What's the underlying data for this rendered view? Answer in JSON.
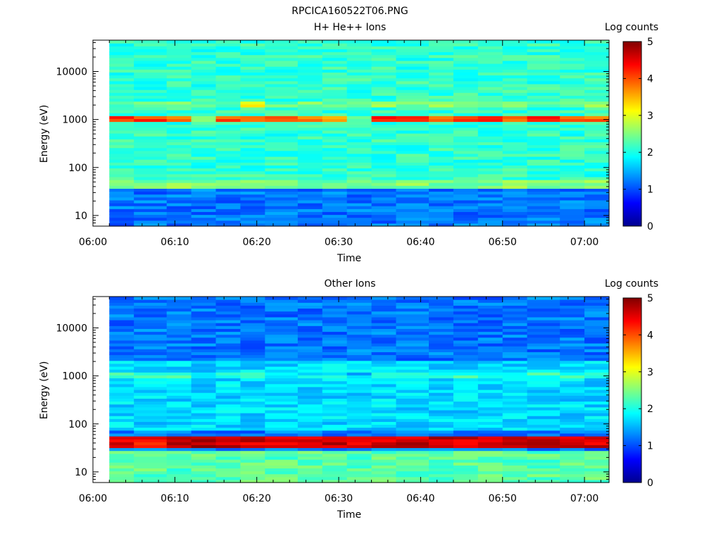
{
  "title": "RPCICA160522T06.PNG",
  "colormap": [
    "#00008f",
    "#0000ff",
    "#0080ff",
    "#00ffff",
    "#80ff80",
    "#ffff00",
    "#ff8000",
    "#ff0000",
    "#800000"
  ],
  "chart_data": [
    {
      "type": "heatmap",
      "title": "H+ He++ Ions",
      "xlabel": "Time",
      "ylabel": "Energy (eV)",
      "ylog": true,
      "xlim": [
        "06:00",
        "07:03"
      ],
      "ylim": [
        6,
        45000
      ],
      "data_start": "06:02",
      "xticks": [
        "06:00",
        "06:10",
        "06:20",
        "06:30",
        "06:40",
        "06:50",
        "07:00"
      ],
      "yticks": [
        {
          "value": 10,
          "label": "10"
        },
        {
          "value": 100,
          "label": "100"
        },
        {
          "value": 1000,
          "label": "1000"
        },
        {
          "value": 10000,
          "label": "10000"
        }
      ],
      "colorbar": {
        "label": "Log counts",
        "min": 0,
        "max": 5,
        "ticks": [
          "0",
          "1",
          "2",
          "3",
          "4",
          "5"
        ]
      },
      "time_bins": [
        "06:02",
        "06:05",
        "06:09",
        "06:12",
        "06:15",
        "06:18",
        "06:21",
        "06:25",
        "06:28",
        "06:31",
        "06:34",
        "06:37",
        "06:41",
        "06:44",
        "06:47",
        "06:50",
        "06:53",
        "06:57",
        "07:00"
      ],
      "features": [
        {
          "name": "base",
          "energy_range": [
            6,
            45000
          ],
          "log_counts": 2.1
        },
        {
          "name": "low energy",
          "energy_range": [
            6,
            35
          ],
          "log_counts": 1.2
        },
        {
          "name": "band 40-55 eV",
          "energy_range": [
            38,
            56
          ],
          "log_counts": 2.5
        },
        {
          "name": "band 900-1100 eV",
          "energy_range": [
            880,
            1150
          ],
          "log_counts": [
            4.1,
            4.1,
            3.9,
            2.3,
            4.0,
            4.0,
            3.9,
            3.6,
            3.6,
            2.5,
            4.1,
            4.2,
            4.0,
            4.1,
            4.1,
            4.0,
            4.1,
            4.0,
            3.9
          ]
        },
        {
          "name": "band 2000 eV",
          "energy_range": [
            1850,
            2300
          ],
          "log_counts": [
            2.3,
            2.5,
            2.4,
            2.3,
            2.4,
            3.0,
            2.4,
            2.4,
            2.3,
            2.3,
            2.5,
            2.5,
            2.5,
            2.5,
            2.5,
            2.5,
            2.4,
            2.6,
            2.5
          ]
        }
      ]
    },
    {
      "type": "heatmap",
      "title": "Other Ions",
      "xlabel": "Time",
      "ylabel": "Energy (eV)",
      "ylog": true,
      "xlim": [
        "06:00",
        "07:03"
      ],
      "ylim": [
        6,
        45000
      ],
      "data_start": "06:02",
      "xticks": [
        "06:00",
        "06:10",
        "06:20",
        "06:30",
        "06:40",
        "06:50",
        "07:00"
      ],
      "yticks": [
        {
          "value": 10,
          "label": "10"
        },
        {
          "value": 100,
          "label": "100"
        },
        {
          "value": 1000,
          "label": "1000"
        },
        {
          "value": 10000,
          "label": "10000"
        }
      ],
      "colorbar": {
        "label": "Log counts",
        "min": 0,
        "max": 5,
        "ticks": [
          "0",
          "1",
          "2",
          "3",
          "4",
          "5"
        ]
      },
      "time_bins": [
        "06:02",
        "06:05",
        "06:09",
        "06:12",
        "06:15",
        "06:18",
        "06:21",
        "06:25",
        "06:28",
        "06:31",
        "06:34",
        "06:37",
        "06:41",
        "06:44",
        "06:47",
        "06:50",
        "06:53",
        "06:57",
        "07:00"
      ],
      "features": [
        {
          "name": "high energy",
          "energy_range": [
            2000,
            45000
          ],
          "log_counts": 1.2
        },
        {
          "name": "mid energy",
          "energy_range": [
            70,
            2000
          ],
          "log_counts": 1.7
        },
        {
          "name": "band 1000 eV",
          "energy_range": [
            880,
            1150
          ],
          "log_counts": [
            2.2,
            2.3,
            2.1,
            1.8,
            2.1,
            2.1,
            2.0,
            1.9,
            1.8,
            1.5,
            2.1,
            2.1,
            2.1,
            2.1,
            2.1,
            2.1,
            2.1,
            2.1,
            2.0
          ]
        },
        {
          "name": "band 30-55 eV",
          "energy_range": [
            30,
            55
          ],
          "log_counts": [
            4.6,
            4.4,
            4.7,
            4.7,
            4.6,
            4.6,
            4.6,
            4.6,
            4.6,
            4.6,
            4.6,
            4.6,
            4.6,
            4.6,
            4.6,
            4.6,
            4.6,
            4.6,
            4.6
          ]
        },
        {
          "name": "low energy",
          "energy_range": [
            6,
            28
          ],
          "log_counts": 2.3
        }
      ]
    }
  ]
}
